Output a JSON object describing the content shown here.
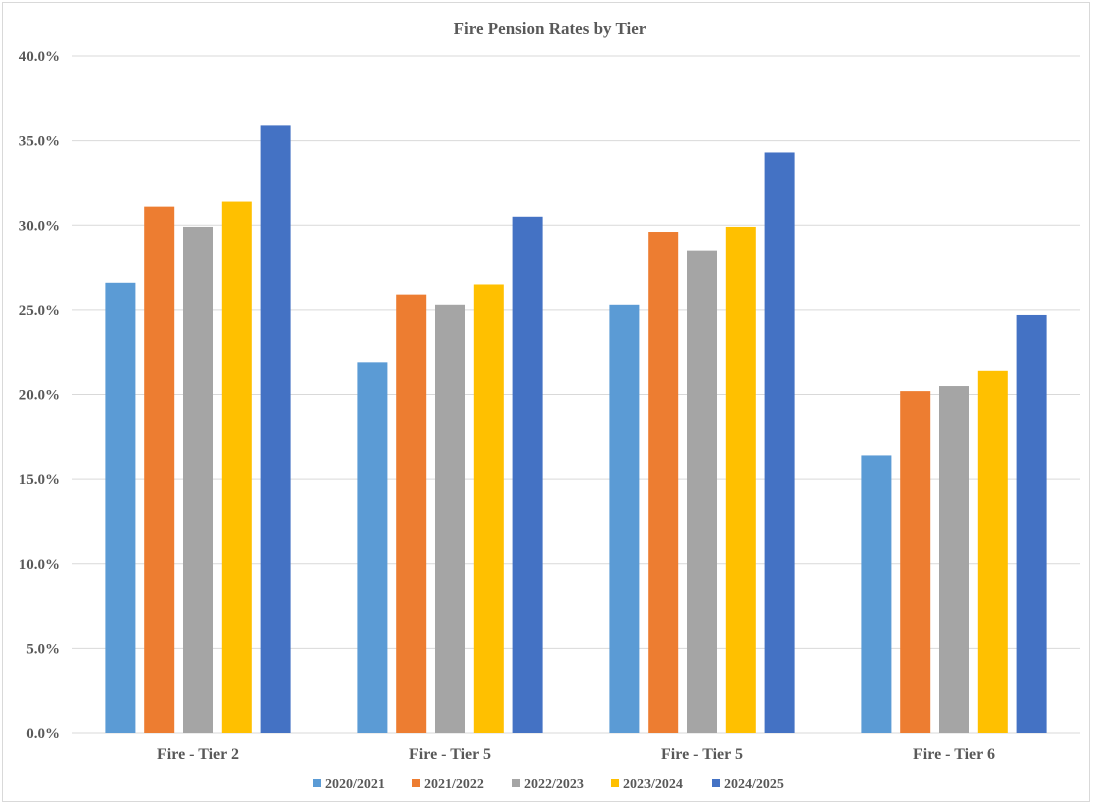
{
  "chart_data": {
    "type": "bar",
    "title": "Fire Pension Rates by Tier",
    "xlabel": "",
    "ylabel": "",
    "categories": [
      "Fire - Tier 2",
      "Fire - Tier 5",
      "Fire - Tier 5",
      "Fire - Tier 6"
    ],
    "ylim": [
      0,
      40
    ],
    "yticks": [
      "0.0%",
      "5.0%",
      "10.0%",
      "15.0%",
      "20.0%",
      "25.0%",
      "30.0%",
      "35.0%",
      "40.0%"
    ],
    "grid": true,
    "legend_position": "bottom",
    "series": [
      {
        "name": "2020/2021",
        "color": "#5b9bd5",
        "values": [
          26.6,
          21.9,
          25.3,
          16.4
        ]
      },
      {
        "name": "2021/2022",
        "color": "#ed7d31",
        "values": [
          31.1,
          25.9,
          29.6,
          20.2
        ]
      },
      {
        "name": "2022/2023",
        "color": "#a5a5a5",
        "values": [
          29.9,
          25.3,
          28.5,
          20.5
        ]
      },
      {
        "name": "2023/2024",
        "color": "#ffc000",
        "values": [
          31.4,
          26.5,
          29.9,
          21.4
        ]
      },
      {
        "name": "2024/2025",
        "color": "#4472c4",
        "values": [
          35.9,
          30.5,
          34.3,
          24.7
        ]
      }
    ]
  }
}
